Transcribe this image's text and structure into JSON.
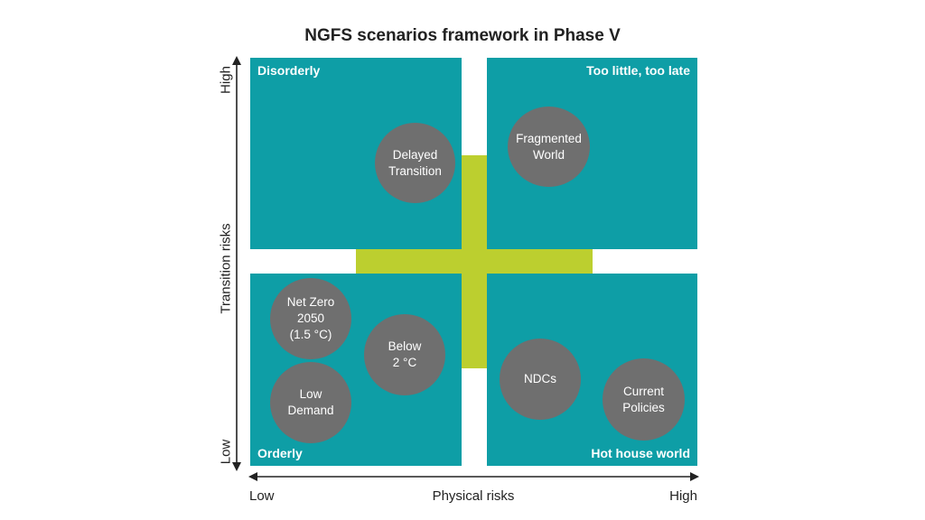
{
  "title": "NGFS scenarios framework in Phase V",
  "quadrants": {
    "top_left": "Disorderly",
    "top_right": "Too little, too late",
    "bottom_left": "Orderly",
    "bottom_right": "Hot house world"
  },
  "scenarios": {
    "delayed_transition": "Delayed\nTransition",
    "fragmented_world": "Fragmented\nWorld",
    "net_zero_2050": "Net Zero\n2050\n(1.5 °C)",
    "below_2c": "Below\n2 °C",
    "low_demand": "Low\nDemand",
    "ndcs": "NDCs",
    "current_policies": "Current\nPolicies"
  },
  "axes": {
    "y_label": "Transition risks",
    "y_high": "High",
    "y_low": "Low",
    "x_label": "Physical risks",
    "x_low": "Low",
    "x_high": "High"
  },
  "colors": {
    "quadrant": "#0e9ea6",
    "cross": "#bccf2f",
    "bubble": "#6f6f6f"
  }
}
